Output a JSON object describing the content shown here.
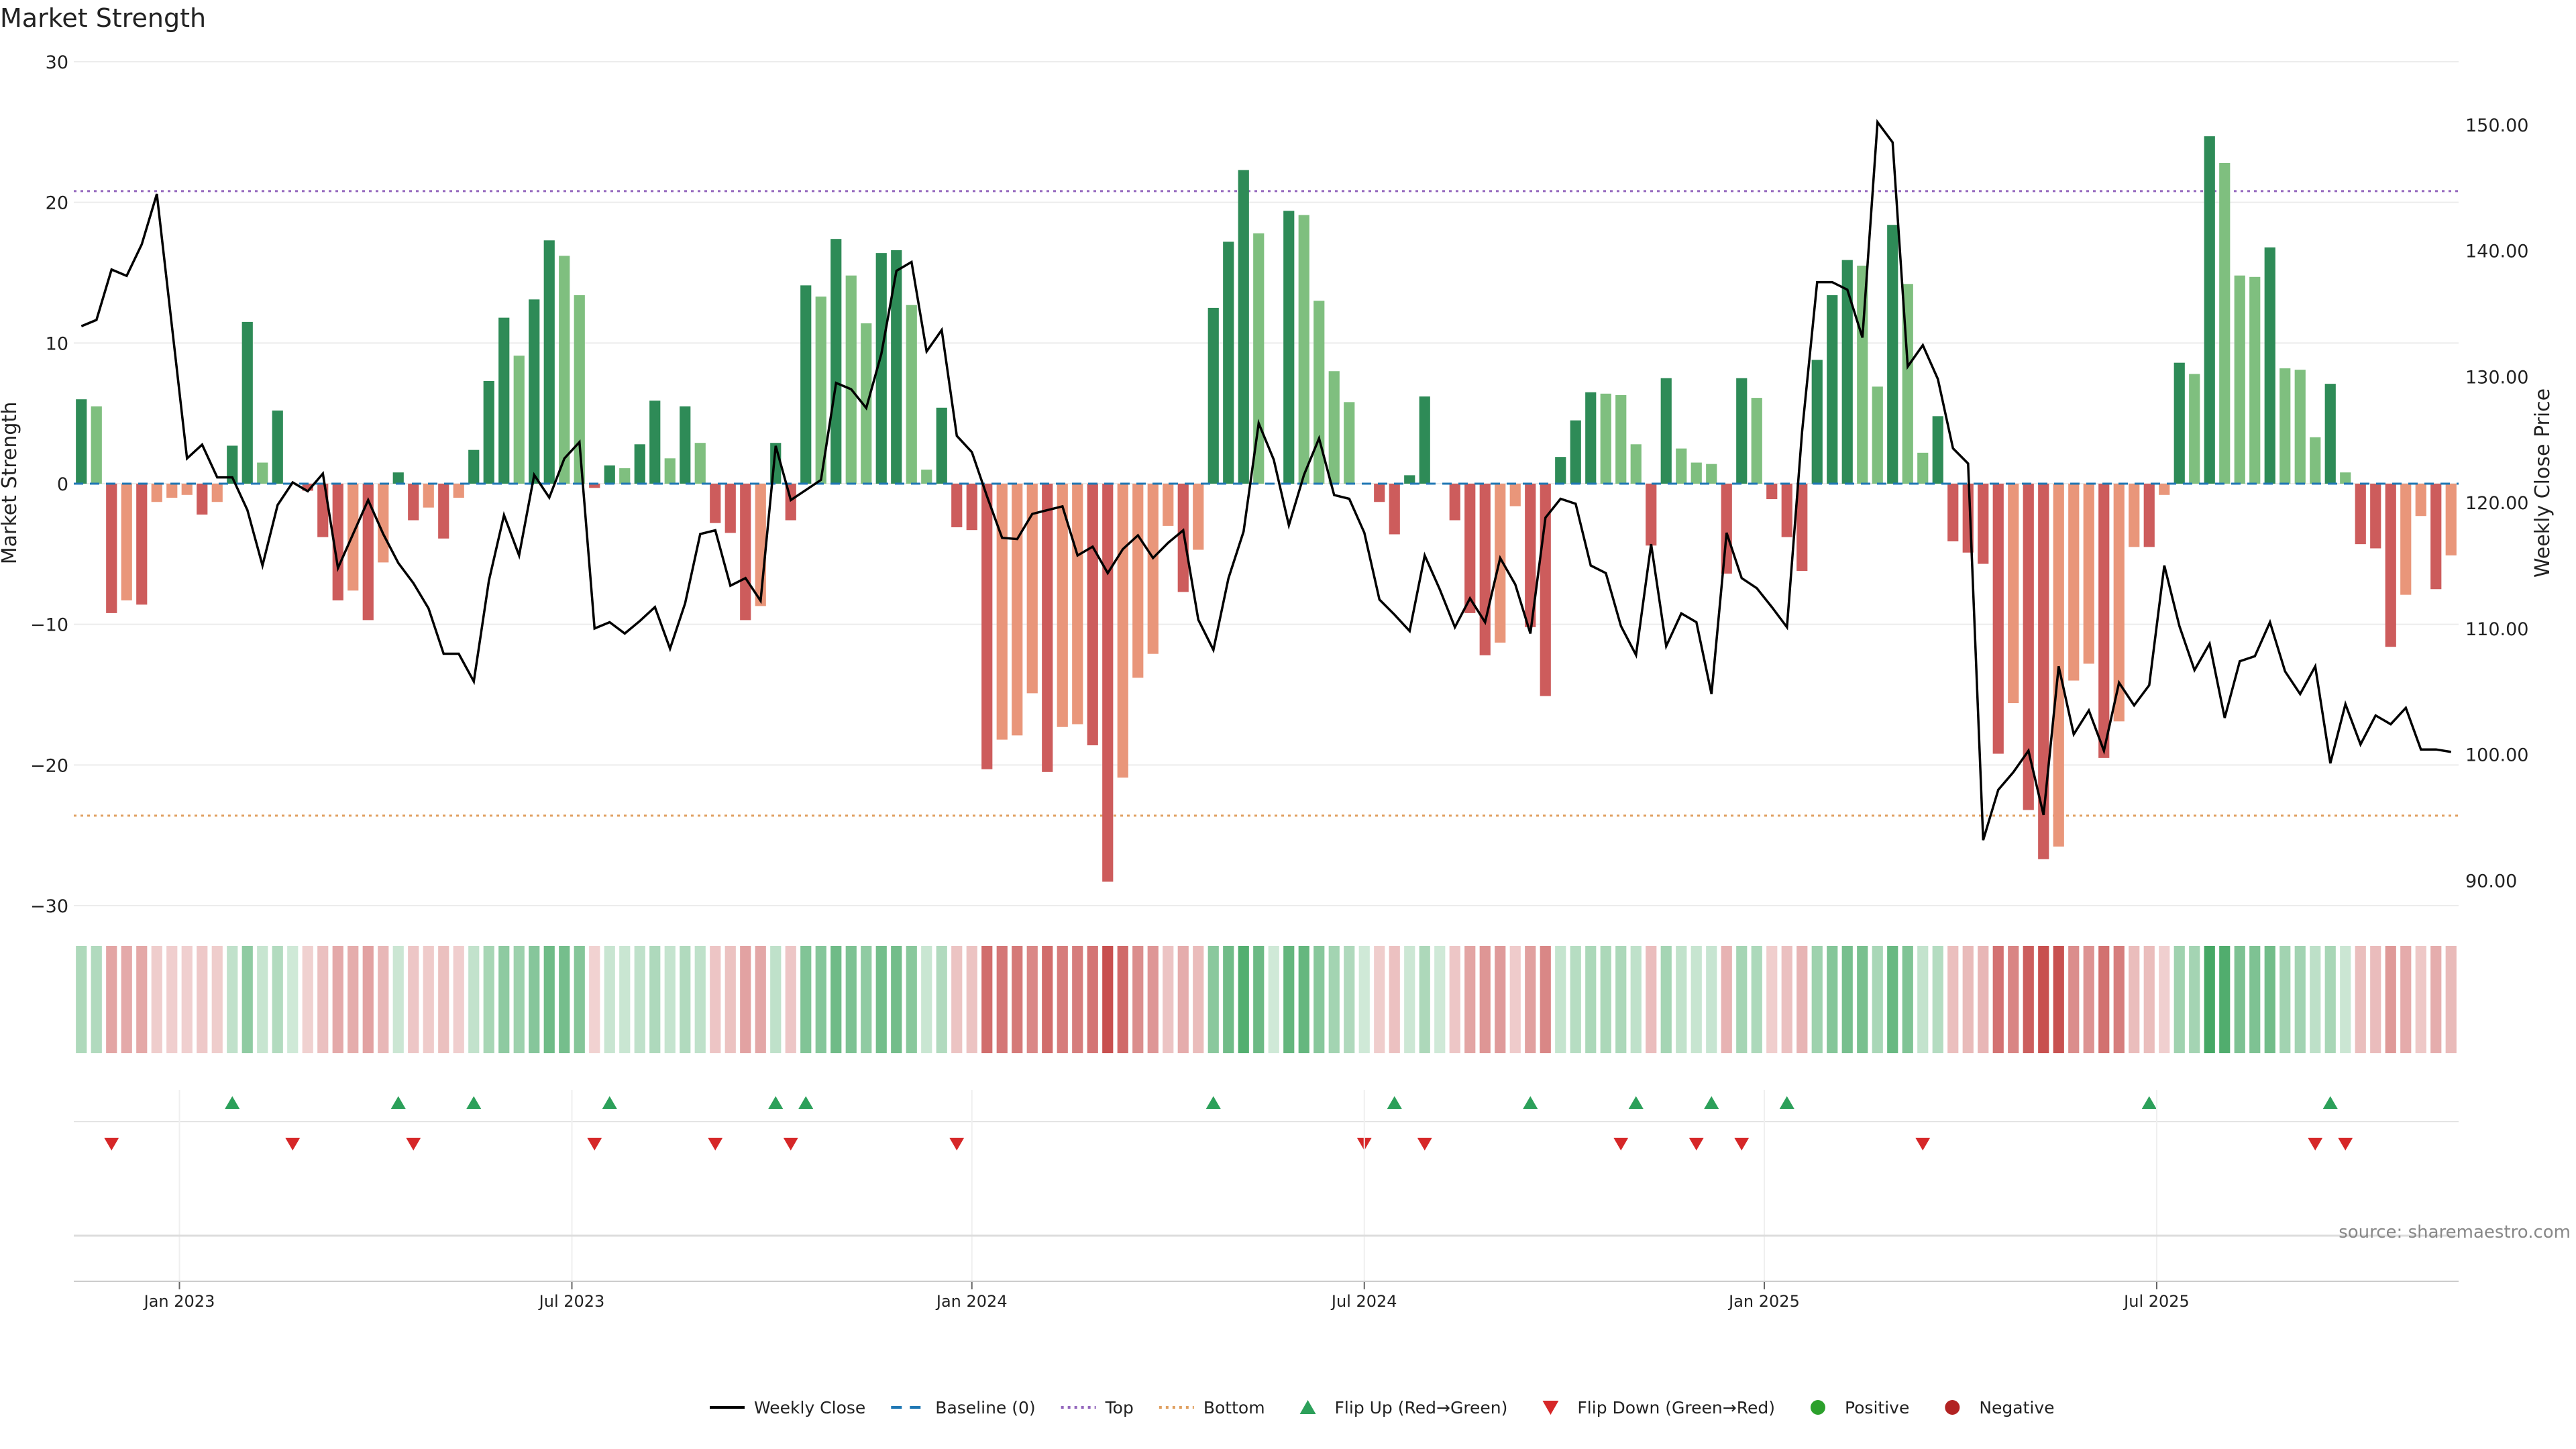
{
  "chart_data": {
    "type": "bar",
    "title": "Market Strength",
    "ylabel": "Market Strength",
    "y2label": "Weekly Close Price",
    "ylim": [
      -30,
      30
    ],
    "y2lim": [
      88,
      155
    ],
    "yticks": [
      30,
      20,
      10,
      0,
      -10,
      -20,
      -30
    ],
    "ytick_labels": [
      "30",
      "20",
      "10",
      "0",
      "−10",
      "−20",
      "−30"
    ],
    "y2ticks": [
      150,
      140,
      130,
      120,
      110,
      100,
      90
    ],
    "y2tick_labels": [
      "150.00",
      "140.00",
      "130.00",
      "120.00",
      "110.00",
      "100.00",
      "90.00"
    ],
    "top_threshold": 20.8,
    "bottom_threshold": -23.6,
    "x_start_week_label": "2022-11-14",
    "xticks": [
      {
        "label": "Jan 2023",
        "week": 7
      },
      {
        "label": "Jul 2023",
        "week": 33
      },
      {
        "label": "Jan 2024",
        "week": 59.5
      },
      {
        "label": "Jul 2024",
        "week": 85.5
      },
      {
        "label": "Jan 2025",
        "week": 112
      },
      {
        "label": "Jul 2025",
        "week": 138
      }
    ],
    "strength": [
      6,
      5.5,
      -9.2,
      -8.3,
      -8.6,
      -1.3,
      -1,
      -0.8,
      -2.2,
      -1.3,
      2.7,
      11.5,
      1.5,
      5.2,
      0,
      -0.5,
      -3.8,
      -8.3,
      -7.6,
      -9.7,
      -5.6,
      0.8,
      -2.6,
      -1.7,
      -3.9,
      -1,
      2.4,
      7.3,
      11.8,
      9.1,
      13.1,
      17.3,
      16.2,
      13.4,
      -0.3,
      1.3,
      1.1,
      2.8,
      5.9,
      1.8,
      5.5,
      2.9,
      -2.8,
      -3.5,
      -9.7,
      -8.7,
      2.9,
      -2.6,
      14.1,
      13.3,
      17.4,
      14.8,
      11.4,
      16.4,
      16.6,
      12.7,
      1,
      5.4,
      -3.1,
      -3.3,
      -20.3,
      -18.2,
      -17.9,
      -14.9,
      -20.5,
      -17.3,
      -17.1,
      -18.6,
      -28.3,
      -20.9,
      -13.8,
      -12.1,
      -3,
      -7.7,
      -4.7,
      12.5,
      17.2,
      22.3,
      17.8,
      0,
      19.4,
      19.1,
      13,
      8,
      5.8,
      0,
      -1.3,
      -3.6,
      0.6,
      6.2,
      0,
      -2.6,
      -9.2,
      -12.2,
      -11.3,
      -1.6,
      -10.2,
      -15.1,
      1.9,
      4.5,
      6.5,
      6.4,
      6.3,
      2.8,
      -4.4,
      7.5,
      2.5,
      1.5,
      1.4,
      -6.4,
      7.5,
      6.1,
      -1.1,
      -3.8,
      -6.2,
      8.8,
      13.4,
      15.9,
      15.5,
      6.9,
      18.4,
      14.2,
      2.2,
      4.8,
      -4.1,
      -4.9,
      -5.7,
      -19.2,
      -15.6,
      -23.2,
      -26.7,
      -25.8,
      -14,
      -12.8,
      -19.5,
      -16.9,
      -4.5,
      -4.5,
      -0.8,
      8.6,
      7.8,
      24.7,
      22.8,
      14.8,
      14.7,
      16.8,
      8.2,
      8.1,
      3.3,
      7.1,
      0.8,
      -4.3,
      -4.6,
      -11.6,
      -7.9,
      -2.3,
      -7.5,
      -5.1
    ],
    "close": [
      134,
      134.5,
      138.5,
      138,
      140.5,
      144.5,
      134,
      123.5,
      124.6,
      122,
      122,
      119.4,
      115,
      119.8,
      121.6,
      120.9,
      122.3,
      114.8,
      117.5,
      120.2,
      117.5,
      115.2,
      113.6,
      111.6,
      108,
      108,
      105.8,
      113.8,
      119,
      115.8,
      122.2,
      120.4,
      123.5,
      124.8,
      110,
      110.5,
      109.6,
      110.6,
      111.7,
      108.4,
      112,
      117.5,
      117.8,
      113.4,
      114,
      112.2,
      124.5,
      120.2,
      121,
      121.8,
      129.5,
      129,
      127.5,
      131.8,
      138.4,
      139.1,
      132,
      133.7,
      125.3,
      124,
      120.5,
      117.2,
      117.1,
      119.1,
      119.4,
      119.7,
      115.8,
      116.5,
      114.4,
      116.3,
      117.4,
      115.6,
      116.8,
      117.8,
      110.7,
      108.3,
      114,
      117.7,
      126.3,
      123.4,
      118.2,
      122.2,
      125.1,
      120.6,
      120.3,
      117.6,
      112.3,
      111.1,
      109.8,
      115.8,
      113.1,
      110.1,
      112.4,
      110.5,
      115.6,
      113.5,
      109.6,
      118.8,
      120.3,
      119.9,
      115,
      114.4,
      110.2,
      107.9,
      116.7,
      108.6,
      111.2,
      110.5,
      104.8,
      117.6,
      114,
      113.2,
      111.7,
      110.1,
      125.6,
      137.5,
      137.5,
      136.9,
      133.1,
      150.2,
      148.6,
      130.8,
      132.5,
      129.8,
      124.3,
      123.1,
      93.2,
      97.2,
      98.6,
      100.3,
      95.2,
      107,
      101.6,
      103.5,
      100.3,
      105.7,
      103.9,
      105.5,
      115,
      110.2,
      106.7,
      108.8,
      102.9,
      107.4,
      107.8,
      110.5,
      106.6,
      104.8,
      107,
      99.3,
      104,
      100.8,
      103.1,
      102.4,
      103.7,
      100.4,
      100.4,
      100.2
    ],
    "flip_up_weeks": [
      10,
      21,
      26,
      35,
      46,
      48,
      75,
      87,
      96,
      103,
      108,
      113,
      137,
      149
    ],
    "flip_down_weeks": [
      2,
      14,
      22,
      34,
      42,
      47,
      58,
      85,
      89,
      102,
      107,
      110,
      122,
      148,
      150
    ],
    "legend": [
      {
        "label": "Weekly Close",
        "marker": "line-black"
      },
      {
        "label": "Baseline (0)",
        "marker": "dash-blue"
      },
      {
        "label": "Top",
        "marker": "dot-purple"
      },
      {
        "label": "Bottom",
        "marker": "dot-orange"
      },
      {
        "label": "Flip Up (Red→Green)",
        "marker": "triangle-up-green"
      },
      {
        "label": "Flip Down (Green→Red)",
        "marker": "triangle-down-red"
      },
      {
        "label": "Positive",
        "marker": "circle-green"
      },
      {
        "label": "Negative",
        "marker": "circle-red"
      }
    ],
    "legend_position": "bottom-center",
    "grid": true,
    "source": "source: sharemaestro.com"
  },
  "colors": {
    "pos_strong": "#2e8b57",
    "pos_light": "#7fbf7f",
    "neg_strong": "#cd5c5c",
    "neg_light": "#e9967a",
    "close_line": "#000000",
    "baseline": "#1f77b4",
    "top": "#9467bd",
    "bottom": "#e0a060",
    "flip_up": "#2ca05a",
    "flip_down": "#d62728",
    "positive_dot": "#2ca02c",
    "negative_dot": "#b22222"
  }
}
